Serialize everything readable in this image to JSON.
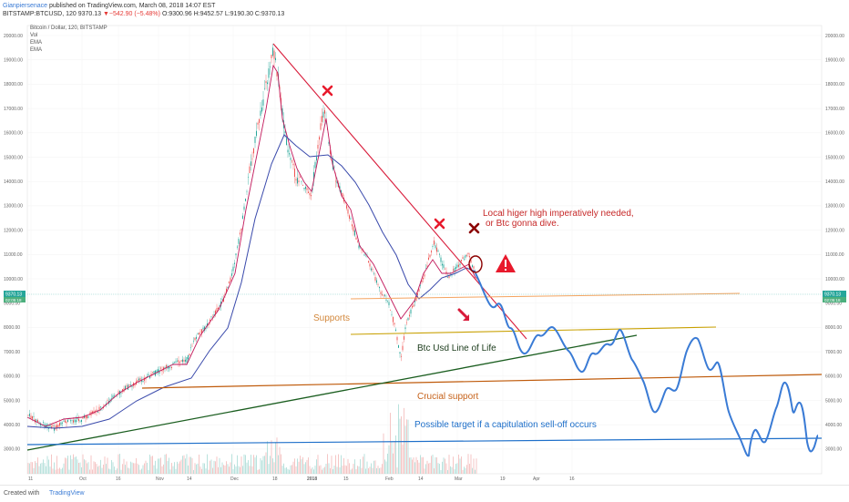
{
  "topbar": {
    "author": "Gianpiersenace",
    "published": "published on TradingView.com, March 08, 2018 14:07 EST",
    "symbol": "BITSTAMP:BTCUSD, 120",
    "last": "9370.13",
    "change": "▼−542.90 (−5.48%)",
    "ohlc": "O:9300.96 H:9452.57 L:9190.30 C:9370.13"
  },
  "legend": {
    "title": "Bitcoin / Dollar, 120, BITSTAMP",
    "vol": "Vol",
    "ema1": "EMA",
    "ema2": "EMA"
  },
  "axis": {
    "y_ticks": [
      "20000.00",
      "19000.00",
      "18000.00",
      "17000.00",
      "16000.00",
      "15000.00",
      "14000.00",
      "13000.00",
      "12000.00",
      "11000.00",
      "10000.00",
      "9000.00",
      "8000.00",
      "7000.00",
      "6000.00",
      "5000.00",
      "4000.00",
      "3000.00"
    ],
    "x_ticks": [
      "11",
      "Oct",
      "16",
      "Nov",
      "14",
      "Dec",
      "18",
      "2018",
      "15",
      "Feb",
      "14",
      "Mar",
      "19",
      "Apr",
      "16"
    ],
    "current_price": "9370.13",
    "current_price_sub": "02:05:18"
  },
  "annotations": {
    "local_higher_1": "Local higer high imperatively needed,",
    "local_higher_2": "or Btc gonna dive.",
    "supports": "Supports",
    "line_of_life": "Btc Usd Line of Life",
    "crucial_support": "Crucial support",
    "possible_target": "Possible target if a capitulation sell-off occurs"
  },
  "colors": {
    "downtrend": "#d81b3a",
    "ema_red": "#c2185b",
    "ema_blue": "#3949ab",
    "supports_orange": "#f4a460",
    "line_of_life": "#1b5e20",
    "crucial": "#bf5a0a",
    "target_blue": "#1e6fc9",
    "projection": "#3a7bd5"
  },
  "footer": {
    "created_with": "Created with",
    "brand": "TradingView"
  }
}
